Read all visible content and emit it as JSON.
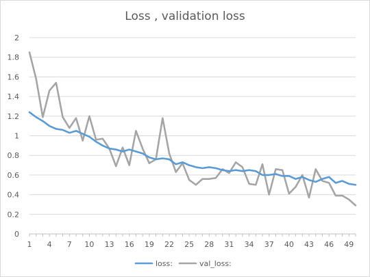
{
  "chart_data": {
    "type": "line",
    "title": "Loss , validation loss",
    "xlabel": "",
    "ylabel": "",
    "ylim": [
      0,
      2
    ],
    "yticks": [
      "0",
      "0.2",
      "0.4",
      "0.6",
      "0.8",
      "1",
      "1.2",
      "1.4",
      "1.6",
      "1.8",
      "2"
    ],
    "xticks": [
      "1",
      "4",
      "7",
      "10",
      "13",
      "16",
      "19",
      "22",
      "25",
      "28",
      "31",
      "34",
      "37",
      "40",
      "43",
      "46",
      "49"
    ],
    "x": [
      1,
      2,
      3,
      4,
      5,
      6,
      7,
      8,
      9,
      10,
      11,
      12,
      13,
      14,
      15,
      16,
      17,
      18,
      19,
      20,
      21,
      22,
      23,
      24,
      25,
      26,
      27,
      28,
      29,
      30,
      31,
      32,
      33,
      34,
      35,
      36,
      37,
      38,
      39,
      40,
      41,
      42,
      43,
      44,
      45,
      46,
      47,
      48,
      49,
      50
    ],
    "grid": true,
    "legend_position": "bottom",
    "series": [
      {
        "name": "loss:",
        "color": "#5b9bd5",
        "values": [
          1.24,
          1.19,
          1.15,
          1.1,
          1.07,
          1.06,
          1.03,
          1.05,
          1.02,
          0.99,
          0.94,
          0.9,
          0.87,
          0.86,
          0.84,
          0.86,
          0.84,
          0.82,
          0.78,
          0.76,
          0.77,
          0.76,
          0.71,
          0.73,
          0.7,
          0.68,
          0.67,
          0.68,
          0.67,
          0.65,
          0.64,
          0.65,
          0.64,
          0.65,
          0.64,
          0.6,
          0.6,
          0.61,
          0.59,
          0.59,
          0.56,
          0.58,
          0.55,
          0.53,
          0.56,
          0.58,
          0.52,
          0.54,
          0.51,
          0.5
        ]
      },
      {
        "name": "val_loss:",
        "color": "#a5a5a5",
        "values": [
          1.85,
          1.58,
          1.19,
          1.46,
          1.54,
          1.19,
          1.08,
          1.18,
          0.95,
          1.2,
          0.96,
          0.97,
          0.87,
          0.69,
          0.88,
          0.7,
          1.05,
          0.87,
          0.72,
          0.76,
          1.18,
          0.82,
          0.63,
          0.72,
          0.55,
          0.5,
          0.56,
          0.56,
          0.57,
          0.66,
          0.62,
          0.73,
          0.68,
          0.51,
          0.5,
          0.71,
          0.4,
          0.66,
          0.65,
          0.41,
          0.48,
          0.6,
          0.37,
          0.66,
          0.54,
          0.52,
          0.39,
          0.39,
          0.35,
          0.29
        ]
      }
    ]
  }
}
